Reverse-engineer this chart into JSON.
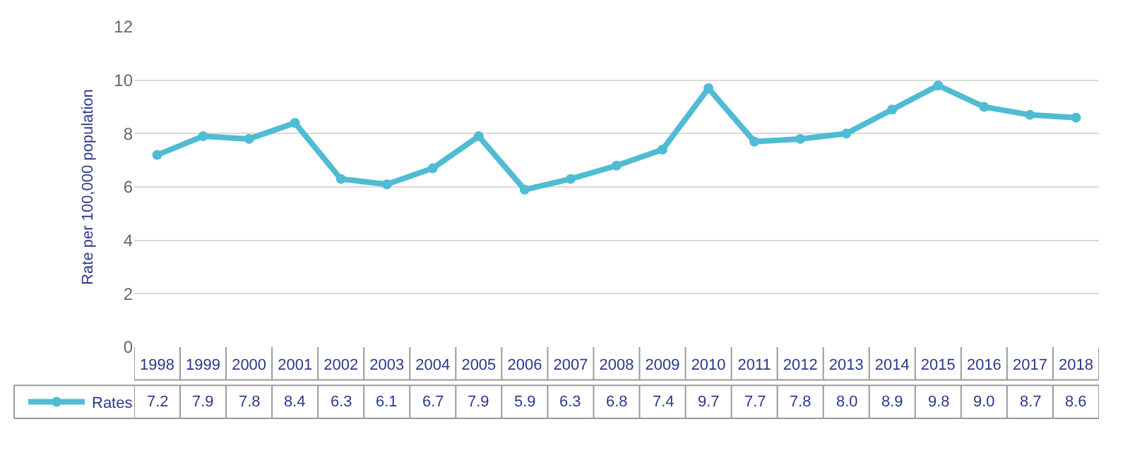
{
  "chart_data": {
    "type": "line",
    "ylabel": "Rate per 100,000 population",
    "categories": [
      "1998",
      "1999",
      "2000",
      "2001",
      "2002",
      "2003",
      "2004",
      "2005",
      "2006",
      "2007",
      "2008",
      "2009",
      "2010",
      "2011",
      "2012",
      "2013",
      "2014",
      "2015",
      "2016",
      "2017",
      "2018"
    ],
    "series": [
      {
        "name": "Rates",
        "color": "#4fbcd3",
        "values": [
          7.2,
          7.9,
          7.8,
          8.4,
          6.3,
          6.1,
          6.7,
          7.9,
          5.9,
          6.3,
          6.8,
          7.4,
          9.7,
          7.7,
          7.8,
          8.0,
          8.9,
          9.8,
          9.0,
          8.7,
          8.6
        ],
        "value_labels": [
          "7.2",
          "7.9",
          "7.8",
          "8.4",
          "6.3",
          "6.1",
          "6.7",
          "7.9",
          "5.9",
          "6.3",
          "6.8",
          "7.4",
          "9.7",
          "7.7",
          "7.8",
          "8.0",
          "8.9",
          "9.8",
          "9.0",
          "8.7",
          "8.6"
        ]
      }
    ],
    "ylim": [
      0,
      12
    ],
    "yticks": [
      0,
      2,
      4,
      6,
      8,
      10,
      12
    ],
    "grid": "y",
    "legend": "bottom left",
    "marker": "circle",
    "line_style": "solid"
  }
}
